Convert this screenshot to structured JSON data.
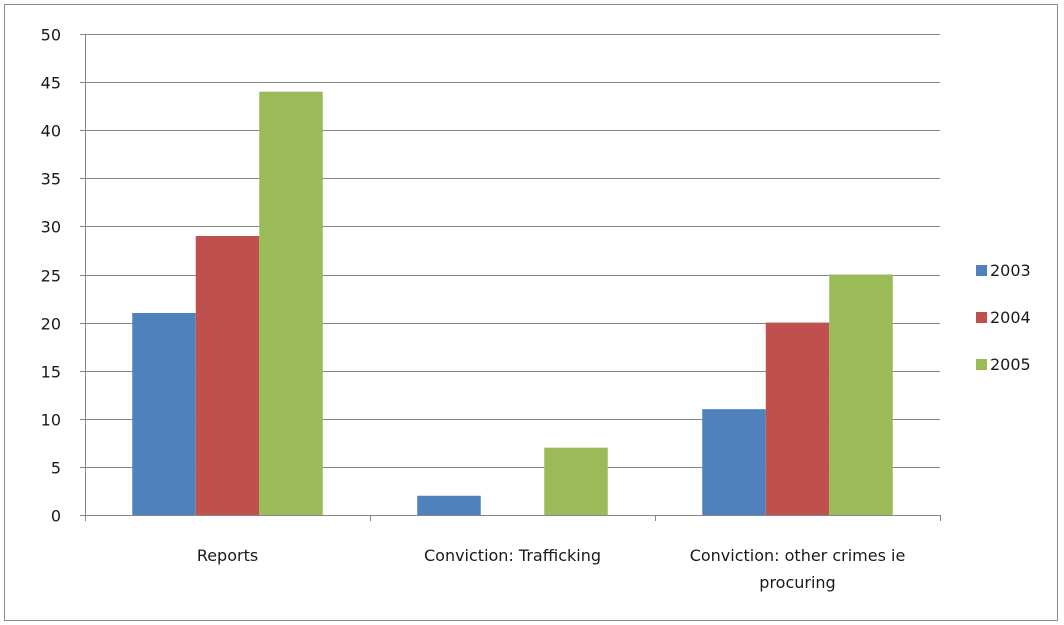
{
  "chart_data": {
    "type": "bar",
    "categories": [
      [
        "Reports"
      ],
      [
        "Conviction: Trafficking"
      ],
      [
        "Conviction: other crimes ie",
        "procuring"
      ]
    ],
    "series": [
      {
        "name": "2003",
        "values": [
          21,
          2,
          11
        ],
        "color": "#4f81bd"
      },
      {
        "name": "2004",
        "values": [
          29,
          0,
          20
        ],
        "color": "#c0504d"
      },
      {
        "name": "2005",
        "values": [
          44,
          7,
          25
        ],
        "color": "#9bbb59"
      }
    ],
    "ylim": [
      0,
      50
    ],
    "yticks": [
      0,
      5,
      10,
      15,
      20,
      25,
      30,
      35,
      40,
      45,
      50
    ],
    "grid": true,
    "legend": "right"
  }
}
